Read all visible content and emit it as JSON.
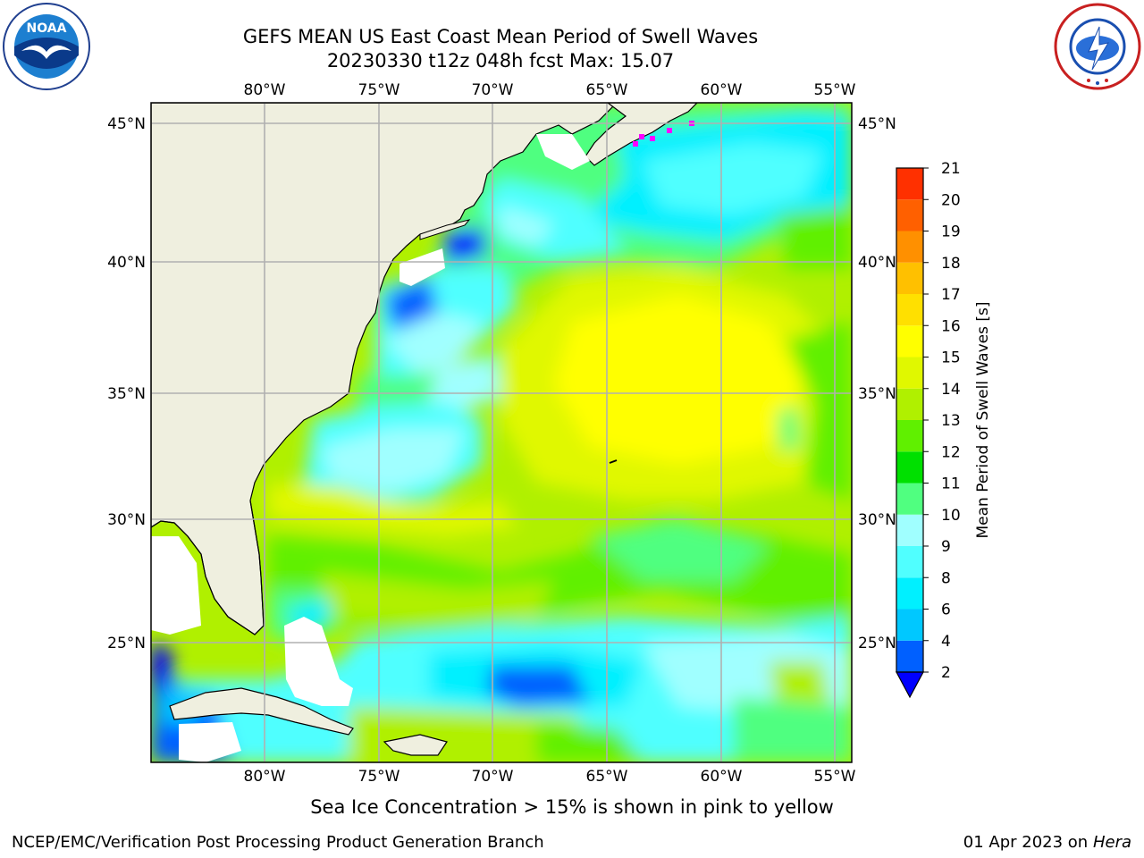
{
  "header": {
    "title_line1": "GEFS MEAN US East Coast Mean Period of Swell Waves",
    "title_line2": "20230330 t12z 048h fcst   Max: 15.07"
  },
  "logos": {
    "noaa": {
      "name": "noaa-logo",
      "text": "NOAA"
    },
    "nws": {
      "name": "nws-logo"
    }
  },
  "map": {
    "lon_labels": [
      "80°W",
      "75°W",
      "70°W",
      "65°W",
      "60°W",
      "55°W"
    ],
    "lat_labels": [
      "45°N",
      "40°N",
      "35°N",
      "30°N",
      "25°N"
    ],
    "land_color": "#efefdf",
    "grid_color": "#b0b0b0"
  },
  "colorbar": {
    "label": "Mean Period of Swell Waves [s]",
    "ticks": [
      "2",
      "4",
      "6",
      "8",
      "9",
      "10",
      "11",
      "12",
      "13",
      "14",
      "15",
      "16",
      "17",
      "18",
      "19",
      "20",
      "21"
    ],
    "colors": [
      "#0060ff",
      "#00c8ff",
      "#00f0ff",
      "#50ffff",
      "#a0ffff",
      "#50ff80",
      "#00e000",
      "#60f000",
      "#b0f000",
      "#e0f800",
      "#ffff00",
      "#ffe000",
      "#ffc000",
      "#ff9000",
      "#ff6000",
      "#ff3000",
      "#ff0000"
    ],
    "extend_color": "#0000ff"
  },
  "footer": {
    "ice_note": "Sea Ice Concentration > 15% is shown in pink to yellow",
    "credit": "NCEP/EMC/Verification Post Processing Product Generation Branch",
    "date": "01 Apr 2023 on ",
    "machine": "Hera"
  }
}
